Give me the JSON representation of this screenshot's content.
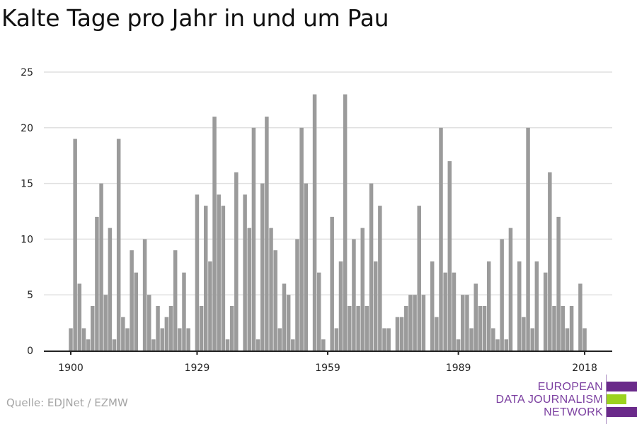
{
  "chart_data": {
    "type": "bar",
    "title": "Kalte Tage pro Jahr in und um Pau",
    "xlabel": "",
    "ylabel": "",
    "ylim": [
      0,
      25
    ],
    "yticks": [
      0,
      5,
      10,
      15,
      20,
      25
    ],
    "xticks": [
      1900,
      1929,
      1959,
      1989,
      2018
    ],
    "grid": true,
    "bar_color": "#9b9b9b",
    "x_start": 1900,
    "x": [
      1900,
      1901,
      1902,
      1903,
      1904,
      1905,
      1906,
      1907,
      1908,
      1909,
      1910,
      1911,
      1912,
      1913,
      1914,
      1915,
      1916,
      1917,
      1918,
      1919,
      1920,
      1921,
      1922,
      1923,
      1924,
      1925,
      1926,
      1927,
      1928,
      1929,
      1930,
      1931,
      1932,
      1933,
      1934,
      1935,
      1936,
      1937,
      1938,
      1939,
      1940,
      1941,
      1942,
      1943,
      1944,
      1945,
      1946,
      1947,
      1948,
      1949,
      1950,
      1951,
      1952,
      1953,
      1954,
      1955,
      1956,
      1957,
      1958,
      1959,
      1960,
      1961,
      1962,
      1963,
      1964,
      1965,
      1966,
      1967,
      1968,
      1969,
      1970,
      1971,
      1972,
      1973,
      1974,
      1975,
      1976,
      1977,
      1978,
      1979,
      1980,
      1981,
      1982,
      1983,
      1984,
      1985,
      1986,
      1987,
      1988,
      1989,
      1990,
      1991,
      1992,
      1993,
      1994,
      1995,
      1996,
      1997,
      1998,
      1999,
      2000,
      2001,
      2002,
      2003,
      2004,
      2005,
      2006,
      2007,
      2008,
      2009,
      2010,
      2011,
      2012,
      2013,
      2014,
      2015,
      2016,
      2017,
      2018
    ],
    "values": [
      2,
      19,
      6,
      2,
      1,
      4,
      12,
      15,
      5,
      11,
      1,
      19,
      3,
      2,
      9,
      7,
      0,
      10,
      5,
      1,
      4,
      2,
      3,
      4,
      9,
      2,
      7,
      2,
      0,
      14,
      4,
      13,
      8,
      21,
      14,
      13,
      1,
      4,
      16,
      0,
      14,
      11,
      20,
      1,
      15,
      21,
      11,
      9,
      2,
      6,
      5,
      1,
      10,
      20,
      15,
      0,
      23,
      7,
      1,
      0,
      12,
      2,
      8,
      23,
      4,
      10,
      4,
      11,
      4,
      15,
      8,
      13,
      2,
      2,
      0,
      3,
      3,
      4,
      5,
      5,
      13,
      5,
      0,
      8,
      3,
      20,
      7,
      17,
      7,
      1,
      5,
      5,
      2,
      6,
      4,
      4,
      8,
      2,
      1,
      10,
      1,
      11,
      0,
      8,
      3,
      20,
      2,
      8,
      0,
      7,
      16,
      4,
      12,
      4,
      2,
      4,
      0,
      6,
      2
    ]
  },
  "footer": {
    "source": "Quelle: EDJNet / EZMW"
  },
  "logo": {
    "line1": "EUROPEAN",
    "line2": "DATA JOURNALISM",
    "line3": "NETWORK",
    "purple": "#6a2a8a",
    "green": "#9bd21e"
  }
}
